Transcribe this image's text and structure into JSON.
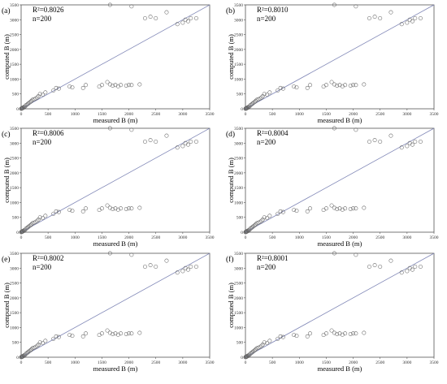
{
  "colors": {
    "identity_line": "#7f86b6",
    "marker": "#666666",
    "frame": "#555555"
  },
  "shared_axes": {
    "xlabel": "measured B (m)",
    "ylabel": "computed B (m)",
    "xticks": [
      "0",
      "500",
      "1000",
      "1500",
      "2000",
      "2500",
      "3000",
      "3500"
    ],
    "yticks": [
      "0",
      "500",
      "1000",
      "1500",
      "2000",
      "2500",
      "3000",
      "3500"
    ]
  },
  "chart_data": [
    {
      "type": "scatter",
      "panel": "(a)",
      "r2": "R²=0.8026",
      "n": "n=200",
      "xlim": [
        0,
        3500
      ],
      "ylim": [
        0,
        3500
      ],
      "grid": false,
      "reference_line": "y = x",
      "x": [
        0,
        5,
        10,
        15,
        20,
        25,
        30,
        40,
        50,
        60,
        75,
        90,
        110,
        130,
        150,
        170,
        190,
        210,
        240,
        270,
        300,
        320,
        350,
        400,
        450,
        600,
        650,
        700,
        900,
        950,
        1150,
        1200,
        1450,
        1500,
        1600,
        1650,
        1700,
        1750,
        1800,
        1850,
        1950,
        2000,
        2050,
        2200,
        1650,
        2050,
        2300,
        2400,
        2500,
        2700,
        2900,
        3000,
        3050,
        3100,
        3150,
        3250
      ],
      "y": [
        0,
        10,
        5,
        20,
        15,
        30,
        25,
        45,
        40,
        70,
        80,
        120,
        140,
        170,
        200,
        230,
        260,
        300,
        320,
        350,
        380,
        420,
        500,
        480,
        550,
        620,
        700,
        680,
        750,
        720,
        700,
        800,
        750,
        800,
        900,
        820,
        780,
        800,
        760,
        800,
        780,
        800,
        800,
        820,
        3500,
        3450,
        3050,
        3100,
        3050,
        3250,
        2850,
        2900,
        3000,
        2950,
        3050,
        3050
      ]
    },
    {
      "type": "scatter",
      "panel": "(b)",
      "r2": "R²=0.8010",
      "n": "n=200",
      "xlim": [
        0,
        3500
      ],
      "ylim": [
        0,
        3500
      ],
      "grid": false,
      "reference_line": "y = x",
      "x": [
        0,
        5,
        10,
        15,
        20,
        25,
        30,
        40,
        50,
        60,
        75,
        90,
        110,
        130,
        150,
        170,
        190,
        210,
        240,
        270,
        300,
        320,
        350,
        400,
        450,
        600,
        650,
        700,
        900,
        950,
        1150,
        1200,
        1450,
        1500,
        1600,
        1650,
        1700,
        1750,
        1800,
        1850,
        1950,
        2000,
        2050,
        2200,
        1650,
        2050,
        2300,
        2400,
        2500,
        2700,
        2900,
        3000,
        3050,
        3100,
        3150,
        3250
      ],
      "y": [
        0,
        10,
        5,
        20,
        15,
        30,
        25,
        45,
        40,
        70,
        80,
        120,
        140,
        170,
        200,
        230,
        260,
        300,
        320,
        350,
        380,
        420,
        500,
        480,
        550,
        620,
        700,
        680,
        750,
        720,
        700,
        800,
        750,
        800,
        900,
        820,
        780,
        800,
        760,
        800,
        780,
        800,
        800,
        820,
        3500,
        3450,
        3050,
        3100,
        3050,
        3250,
        2850,
        2900,
        3000,
        2950,
        3050,
        3050
      ]
    },
    {
      "type": "scatter",
      "panel": "(c)",
      "r2": "R²=0.8006",
      "n": "n=200",
      "xlim": [
        0,
        3500
      ],
      "ylim": [
        0,
        3500
      ],
      "grid": false,
      "reference_line": "y = x",
      "x": [
        0,
        5,
        10,
        15,
        20,
        25,
        30,
        40,
        50,
        60,
        75,
        90,
        110,
        130,
        150,
        170,
        190,
        210,
        240,
        270,
        300,
        320,
        350,
        400,
        450,
        600,
        650,
        700,
        900,
        950,
        1150,
        1200,
        1450,
        1500,
        1600,
        1650,
        1700,
        1750,
        1800,
        1850,
        1950,
        2000,
        2050,
        2200,
        1650,
        2050,
        2300,
        2400,
        2500,
        2700,
        2900,
        3000,
        3050,
        3100,
        3150,
        3250
      ],
      "y": [
        0,
        10,
        5,
        20,
        15,
        30,
        25,
        45,
        40,
        70,
        80,
        120,
        140,
        170,
        200,
        230,
        260,
        300,
        320,
        350,
        380,
        420,
        500,
        480,
        550,
        620,
        700,
        680,
        750,
        720,
        700,
        800,
        750,
        800,
        900,
        820,
        780,
        800,
        760,
        800,
        780,
        800,
        800,
        820,
        3500,
        3450,
        3050,
        3100,
        3050,
        3250,
        2850,
        2900,
        3000,
        2950,
        3050,
        3050
      ]
    },
    {
      "type": "scatter",
      "panel": "(d)",
      "r2": "R²=0.8004",
      "n": "n=200",
      "xlim": [
        0,
        3500
      ],
      "ylim": [
        0,
        3500
      ],
      "grid": false,
      "reference_line": "y = x",
      "x": [
        0,
        5,
        10,
        15,
        20,
        25,
        30,
        40,
        50,
        60,
        75,
        90,
        110,
        130,
        150,
        170,
        190,
        210,
        240,
        270,
        300,
        320,
        350,
        400,
        450,
        600,
        650,
        700,
        900,
        950,
        1150,
        1200,
        1450,
        1500,
        1600,
        1650,
        1700,
        1750,
        1800,
        1850,
        1950,
        2000,
        2050,
        2200,
        1650,
        2050,
        2300,
        2400,
        2500,
        2700,
        2900,
        3000,
        3050,
        3100,
        3150,
        3250
      ],
      "y": [
        0,
        10,
        5,
        20,
        15,
        30,
        25,
        45,
        40,
        70,
        80,
        120,
        140,
        170,
        200,
        230,
        260,
        300,
        320,
        350,
        380,
        420,
        500,
        480,
        550,
        620,
        700,
        680,
        750,
        720,
        700,
        800,
        750,
        800,
        900,
        820,
        780,
        800,
        760,
        800,
        780,
        800,
        800,
        820,
        3500,
        3450,
        3050,
        3100,
        3050,
        3250,
        2850,
        2900,
        3000,
        2950,
        3050,
        3050
      ]
    },
    {
      "type": "scatter",
      "panel": "(e)",
      "r2": "R²=0.8002",
      "n": "n=200",
      "xlim": [
        0,
        3500
      ],
      "ylim": [
        0,
        3500
      ],
      "grid": false,
      "reference_line": "y = x",
      "x": [
        0,
        5,
        10,
        15,
        20,
        25,
        30,
        40,
        50,
        60,
        75,
        90,
        110,
        130,
        150,
        170,
        190,
        210,
        240,
        270,
        300,
        320,
        350,
        400,
        450,
        600,
        650,
        700,
        900,
        950,
        1150,
        1200,
        1450,
        1500,
        1600,
        1650,
        1700,
        1750,
        1800,
        1850,
        1950,
        2000,
        2050,
        2200,
        1650,
        2050,
        2300,
        2400,
        2500,
        2700,
        2900,
        3000,
        3050,
        3100,
        3150,
        3250
      ],
      "y": [
        0,
        10,
        5,
        20,
        15,
        30,
        25,
        45,
        40,
        70,
        80,
        120,
        140,
        170,
        200,
        230,
        260,
        300,
        320,
        350,
        380,
        420,
        500,
        480,
        550,
        620,
        700,
        680,
        750,
        720,
        700,
        800,
        750,
        800,
        900,
        820,
        780,
        800,
        760,
        800,
        780,
        800,
        800,
        820,
        3500,
        3450,
        3050,
        3100,
        3050,
        3250,
        2850,
        2900,
        3000,
        2950,
        3050,
        3050
      ]
    },
    {
      "type": "scatter",
      "panel": "(f)",
      "r2": "R²=0.8001",
      "n": "n=200",
      "xlim": [
        0,
        3500
      ],
      "ylim": [
        0,
        3500
      ],
      "grid": false,
      "reference_line": "y = x",
      "x": [
        0,
        5,
        10,
        15,
        20,
        25,
        30,
        40,
        50,
        60,
        75,
        90,
        110,
        130,
        150,
        170,
        190,
        210,
        240,
        270,
        300,
        320,
        350,
        400,
        450,
        600,
        650,
        700,
        900,
        950,
        1150,
        1200,
        1450,
        1500,
        1600,
        1650,
        1700,
        1750,
        1800,
        1850,
        1950,
        2000,
        2050,
        2200,
        1650,
        2050,
        2300,
        2400,
        2500,
        2700,
        2900,
        3000,
        3050,
        3100,
        3150,
        3250
      ],
      "y": [
        0,
        10,
        5,
        20,
        15,
        30,
        25,
        45,
        40,
        70,
        80,
        120,
        140,
        170,
        200,
        230,
        260,
        300,
        320,
        350,
        380,
        420,
        500,
        480,
        550,
        620,
        700,
        680,
        750,
        720,
        700,
        800,
        750,
        800,
        900,
        820,
        780,
        800,
        760,
        800,
        780,
        800,
        800,
        820,
        3500,
        3450,
        3050,
        3100,
        3050,
        3250,
        2850,
        2900,
        3000,
        2950,
        3050,
        3050
      ]
    }
  ]
}
